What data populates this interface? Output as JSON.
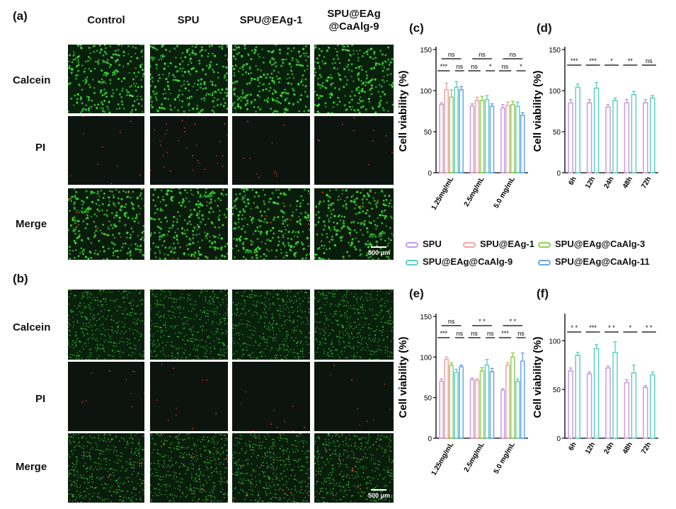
{
  "panel_letters": {
    "a": "(a)",
    "b": "(b)",
    "c": "(c)",
    "d": "(d)",
    "e": "(e)",
    "f": "(f)"
  },
  "columns": [
    "Control",
    "SPU",
    "SPU@EAg-1",
    "SPU@EAg\n@CaAlg-9"
  ],
  "rows": [
    "Calcein",
    "PI",
    "Merge"
  ],
  "scale_bar": "500 μm",
  "colors": {
    "SPU": "#c79be0",
    "SPU@EAg-1": "#f4a3a3",
    "SPU@EAg@CaAlg-3": "#8fd14f",
    "SPU@EAg@CaAlg-9": "#5fd0c6",
    "SPU@EAg@CaAlg-11": "#6aa5e6"
  },
  "legend": [
    "SPU",
    "SPU@EAg-1",
    "SPU@EAg@CaAlg-3",
    "SPU@EAg@CaAlg-9",
    "SPU@EAg@CaAlg-11"
  ],
  "chart_data": [
    {
      "panel": "(c)",
      "type": "bar",
      "ylabel": "Cell viability (%)",
      "ylim": [
        0,
        150
      ],
      "yticks": [
        0,
        50,
        100,
        150
      ],
      "categories": [
        "1.25mg/mL",
        "2.5mg/mL",
        "5.0 mg/mL"
      ],
      "series": [
        {
          "name": "SPU",
          "values": [
            83,
            81,
            79
          ],
          "err": [
            2,
            3,
            4
          ]
        },
        {
          "name": "SPU@EAg-1",
          "values": [
            101,
            88,
            82
          ],
          "err": [
            8,
            4,
            4
          ]
        },
        {
          "name": "SPU@EAg@CaAlg-3",
          "values": [
            92,
            88,
            83
          ],
          "err": [
            9,
            5,
            4
          ]
        },
        {
          "name": "SPU@EAg@CaAlg-9",
          "values": [
            104,
            89,
            81
          ],
          "err": [
            7,
            5,
            5
          ]
        },
        {
          "name": "SPU@EAg@CaAlg-11",
          "values": [
            101,
            81,
            70
          ],
          "err": [
            4,
            3,
            3
          ]
        }
      ],
      "annotations": [
        {
          "text": "ns",
          "group": 0,
          "row": 0
        },
        {
          "text": "***",
          "group": 0,
          "row": 1
        },
        {
          "text": "ns",
          "group": 0,
          "row": 2
        },
        {
          "text": "ns",
          "group": 1,
          "row": 0
        },
        {
          "text": "ns",
          "group": 1,
          "row": 1
        },
        {
          "text": "*",
          "group": 1,
          "row": 2
        },
        {
          "text": "ns",
          "group": 2,
          "row": 0
        },
        {
          "text": "ns",
          "group": 2,
          "row": 1
        },
        {
          "text": "*",
          "group": 2,
          "row": 2
        }
      ]
    },
    {
      "panel": "(d)",
      "type": "bar",
      "ylabel": "Cell viability (%)",
      "ylim": [
        0,
        150
      ],
      "yticks": [
        0,
        50,
        100,
        150
      ],
      "categories": [
        "6h",
        "12h",
        "24h",
        "48h",
        "72h"
      ],
      "series": [
        {
          "name": "SPU",
          "values": [
            85,
            85,
            80,
            85,
            85
          ],
          "err": [
            4,
            4,
            3,
            4,
            4
          ]
        },
        {
          "name": "SPU@EAg@CaAlg-9",
          "values": [
            104,
            103,
            88,
            95,
            91
          ],
          "err": [
            4,
            7,
            3,
            4,
            3
          ]
        }
      ],
      "annotations": [
        "***",
        "***",
        "*",
        "**",
        "ns"
      ]
    },
    {
      "panel": "(e)",
      "type": "bar",
      "ylabel": "Cell viability (%)",
      "ylim": [
        0,
        150
      ],
      "yticks": [
        0,
        50,
        100,
        150
      ],
      "categories": [
        "1.25mg/mL",
        "2.5mg/mL",
        "5.0 mg/mL"
      ],
      "series": [
        {
          "name": "SPU",
          "values": [
            70,
            72,
            59
          ],
          "err": [
            3,
            2,
            2
          ]
        },
        {
          "name": "SPU@EAg-1",
          "values": [
            97,
            71,
            90
          ],
          "err": [
            3,
            2,
            3
          ]
        },
        {
          "name": "SPU@EAg@CaAlg-3",
          "values": [
            90,
            83,
            100
          ],
          "err": [
            3,
            4,
            5
          ]
        },
        {
          "name": "SPU@EAg@CaAlg-9",
          "values": [
            81,
            90,
            70
          ],
          "err": [
            4,
            7,
            3
          ]
        },
        {
          "name": "SPU@EAg@CaAlg-11",
          "values": [
            88,
            82,
            95
          ],
          "err": [
            2,
            4,
            10
          ]
        }
      ],
      "annotations": [
        {
          "text": "ns",
          "group": 0,
          "row": 0
        },
        {
          "text": "***",
          "group": 0,
          "row": 1
        },
        {
          "text": "ns",
          "group": 0,
          "row": 2
        },
        {
          "text": "* *",
          "group": 1,
          "row": 0
        },
        {
          "text": "ns",
          "group": 1,
          "row": 1
        },
        {
          "text": "ns",
          "group": 1,
          "row": 2
        },
        {
          "text": "* *",
          "group": 2,
          "row": 0
        },
        {
          "text": "***",
          "group": 2,
          "row": 1
        },
        {
          "text": "ns",
          "group": 2,
          "row": 2
        }
      ]
    },
    {
      "panel": "(f)",
      "type": "bar",
      "ylabel": "Cell viability (%)",
      "ylim": [
        0,
        125
      ],
      "yticks": [
        0,
        50,
        100
      ],
      "categories": [
        "6h",
        "12h",
        "24h",
        "48h",
        "72h"
      ],
      "series": [
        {
          "name": "SPU",
          "values": [
            69,
            66,
            72,
            57,
            52
          ],
          "err": [
            3,
            2,
            2,
            3,
            2
          ]
        },
        {
          "name": "SPU@EAg@CaAlg-9",
          "values": [
            85,
            92,
            88,
            67,
            65
          ],
          "err": [
            3,
            4,
            11,
            8,
            3
          ]
        }
      ],
      "annotations": [
        "* *",
        "***",
        "* *",
        "*",
        "* *"
      ]
    }
  ]
}
